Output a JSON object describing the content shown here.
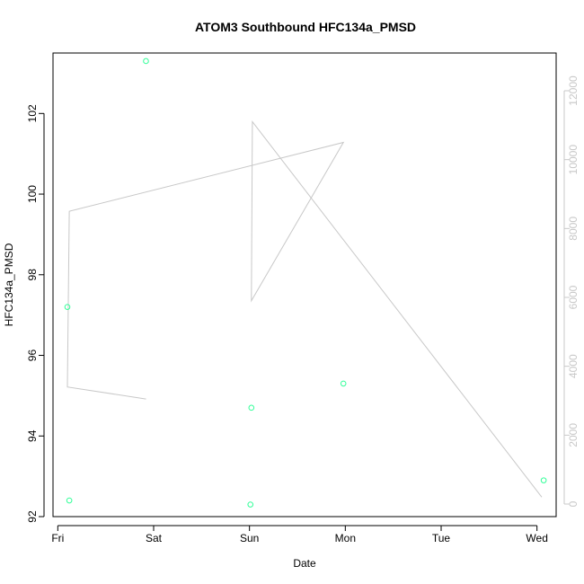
{
  "chart_data": {
    "type": "scatter",
    "title": "ATOM3 Southbound HFC134a_PMSD",
    "xlabel": "Date",
    "ylabel": "HFC134a_PMSD",
    "x_tick_labels": [
      "Fri",
      "Sat",
      "Sun",
      "Mon",
      "Tue",
      "Wed"
    ],
    "xlim_days": [
      -0.05,
      5.2
    ],
    "ylim": [
      92,
      103.5
    ],
    "y_ticks": [
      92,
      94,
      96,
      98,
      100,
      102
    ],
    "y2lim": [
      0,
      12000
    ],
    "y2_ticks": [
      0,
      2000,
      4000,
      6000,
      8000,
      10000,
      12000
    ],
    "points_color": "#33ff99",
    "line_color": "#c8c8c8",
    "series": [
      {
        "kind": "points",
        "axis": "left",
        "x": [
          0.12,
          0.1,
          0.92,
          2.01,
          2.02,
          2.98,
          5.07
        ],
        "y": [
          92.4,
          97.2,
          103.3,
          92.3,
          94.7,
          95.3,
          92.9
        ]
      },
      {
        "kind": "line",
        "axis": "right",
        "x": [
          0.92,
          0.1,
          0.12,
          2.98,
          2.02,
          2.03,
          5.05
        ],
        "y": [
          3050,
          3400,
          8500,
          10500,
          5900,
          11100,
          200
        ]
      }
    ]
  }
}
